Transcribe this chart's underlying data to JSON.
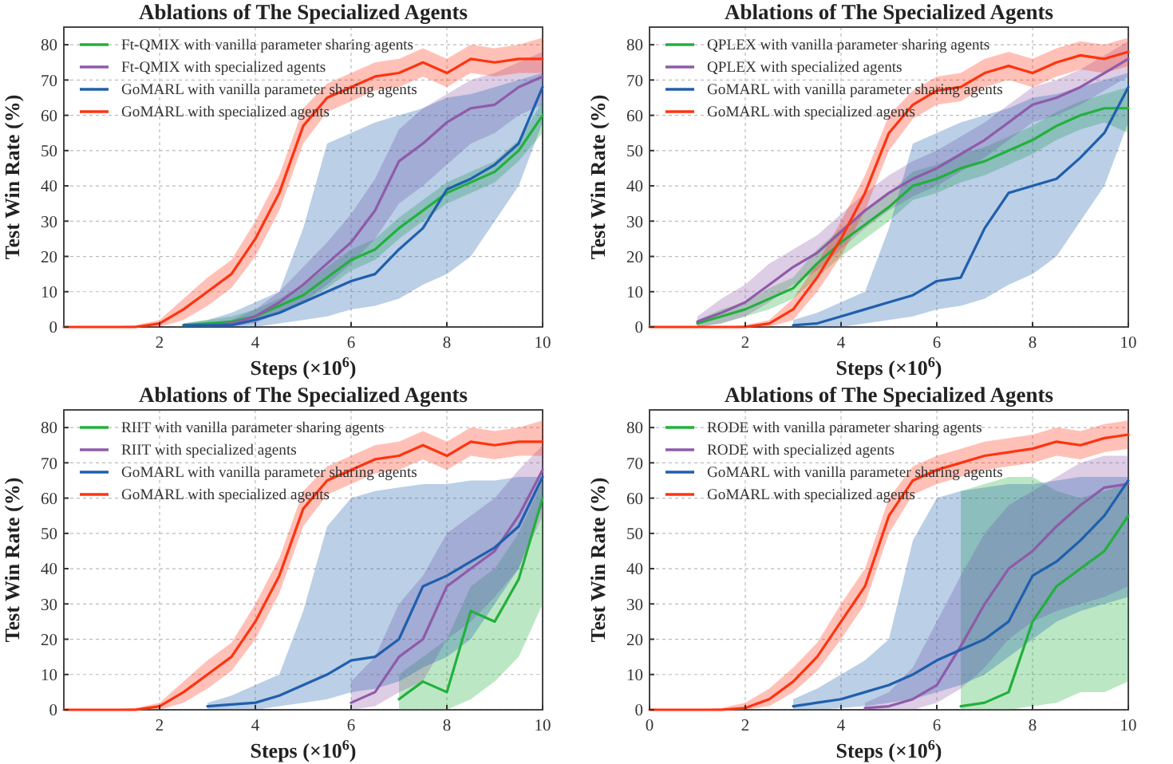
{
  "chart_data": [
    {
      "type": "line",
      "title": "Ablations of The Specialized Agents",
      "xlabel": "Steps (×10$^{6}$)",
      "ylabel": "Test Win Rate (%)",
      "xlim": [
        0,
        10
      ],
      "ylim": [
        0,
        85
      ],
      "xticks": [
        2,
        4,
        6,
        8,
        10
      ],
      "yticks": [
        0,
        10,
        20,
        30,
        40,
        50,
        60,
        70,
        80
      ],
      "grid": true,
      "legend": "top left",
      "line_style": "solid",
      "marker": "none",
      "x": [
        0,
        0.5,
        1,
        1.5,
        2,
        2.5,
        3,
        3.5,
        4,
        4.5,
        5,
        5.5,
        6,
        6.5,
        7,
        7.5,
        8,
        8.5,
        9,
        9.5,
        10
      ],
      "series": [
        {
          "name": "Ft-QMIX with vanilla parameter sharing agents",
          "color": "#22b03c",
          "values": [
            null,
            null,
            null,
            null,
            null,
            0.5,
            1,
            1.5,
            3,
            6,
            9,
            14,
            19,
            22,
            28,
            33,
            38,
            41,
            44,
            50,
            60
          ],
          "lower": [
            null,
            null,
            null,
            null,
            null,
            0,
            0,
            0.5,
            1.5,
            4,
            7,
            11,
            16,
            19,
            25,
            30,
            35,
            38,
            41,
            47,
            55
          ],
          "upper": [
            null,
            null,
            null,
            null,
            null,
            1,
            2,
            3,
            5,
            8,
            12,
            17,
            22,
            25,
            31,
            36,
            41,
            44,
            47,
            53,
            64
          ]
        },
        {
          "name": "Ft-QMIX with specialized agents",
          "color": "#8e5ba8",
          "values": [
            null,
            null,
            null,
            null,
            null,
            null,
            0.5,
            1,
            3,
            7,
            12,
            18,
            24,
            33,
            47,
            52,
            58,
            62,
            63,
            68,
            71
          ],
          "lower": [
            null,
            null,
            null,
            null,
            null,
            null,
            0,
            0,
            1,
            4,
            7,
            12,
            18,
            25,
            35,
            40,
            46,
            52,
            55,
            60,
            63
          ],
          "upper": [
            null,
            null,
            null,
            null,
            null,
            null,
            1,
            2,
            5,
            10,
            17,
            24,
            32,
            42,
            56,
            62,
            66,
            70,
            72,
            75,
            78
          ]
        },
        {
          "name": "GoMARL with vanilla parameter sharing agents",
          "color": "#1f5fad",
          "values": [
            null,
            null,
            null,
            null,
            null,
            0.5,
            0.5,
            0.5,
            2,
            4,
            7,
            10,
            13,
            15,
            22,
            28,
            39,
            42,
            46,
            52,
            68
          ],
          "lower": [
            null,
            null,
            null,
            null,
            null,
            0,
            0,
            0,
            0,
            1,
            2,
            3,
            5,
            6,
            8,
            12,
            15,
            20,
            30,
            40,
            58
          ],
          "upper": [
            null,
            null,
            null,
            null,
            null,
            1,
            2,
            4,
            7,
            10,
            28,
            52,
            55,
            58,
            60,
            62,
            65,
            66,
            68,
            70,
            72
          ]
        },
        {
          "name": "GoMARL with specialized agents",
          "color": "#ff3310",
          "values": [
            0,
            0,
            0,
            0,
            1,
            5,
            10,
            15,
            25,
            38,
            57,
            65,
            68,
            71,
            72,
            75,
            72,
            76,
            75,
            76,
            76
          ],
          "lower": [
            0,
            0,
            0,
            0,
            0,
            2,
            6,
            11,
            20,
            33,
            52,
            61,
            64,
            67,
            68,
            71,
            68,
            72,
            71,
            72,
            72
          ],
          "upper": [
            0,
            0,
            0,
            0.5,
            2,
            8,
            14,
            19,
            30,
            43,
            62,
            69,
            72,
            75,
            76,
            79,
            76,
            80,
            79,
            80,
            82
          ]
        }
      ]
    },
    {
      "type": "line",
      "title": "Ablations of The Specialized Agents",
      "xlabel": "Steps (×10$^{6}$)",
      "ylabel": "Test Win Rate (%)",
      "xlim": [
        0,
        10
      ],
      "ylim": [
        0,
        85
      ],
      "xticks": [
        2,
        4,
        6,
        8,
        10
      ],
      "yticks": [
        0,
        10,
        20,
        30,
        40,
        50,
        60,
        70,
        80
      ],
      "grid": true,
      "legend": "top left",
      "line_style": "solid",
      "marker": "none",
      "x": [
        0,
        0.5,
        1,
        1.5,
        2,
        2.5,
        3,
        3.5,
        4,
        4.5,
        5,
        5.5,
        6,
        6.5,
        7,
        7.5,
        8,
        8.5,
        9,
        9.5,
        10
      ],
      "series": [
        {
          "name": "QPLEX with vanilla parameter sharing agents",
          "color": "#22b03c",
          "values": [
            null,
            null,
            1,
            3,
            5,
            8,
            11,
            18,
            24,
            29,
            34,
            40,
            42,
            45,
            47,
            50,
            53,
            57,
            60,
            62,
            62
          ],
          "lower": [
            null,
            null,
            0,
            1,
            3,
            5,
            8,
            14,
            20,
            25,
            30,
            36,
            38,
            41,
            43,
            46,
            49,
            53,
            56,
            58,
            55
          ],
          "upper": [
            null,
            null,
            2,
            5,
            7,
            11,
            14,
            22,
            28,
            33,
            38,
            44,
            46,
            49,
            51,
            54,
            57,
            61,
            64,
            66,
            68
          ]
        },
        {
          "name": "QPLEX with specialized agents",
          "color": "#8e5ba8",
          "values": [
            null,
            null,
            1.5,
            4,
            7,
            12,
            17,
            21,
            27,
            33,
            38,
            42,
            45,
            49,
            53,
            58,
            63,
            65,
            68,
            72,
            76
          ],
          "lower": [
            null,
            null,
            0,
            1,
            3,
            7,
            12,
            16,
            22,
            28,
            33,
            37,
            40,
            44,
            48,
            53,
            58,
            60,
            63,
            67,
            71
          ],
          "upper": [
            null,
            null,
            3,
            8,
            12,
            18,
            22,
            26,
            32,
            38,
            43,
            47,
            50,
            54,
            58,
            63,
            68,
            70,
            73,
            77,
            81
          ]
        },
        {
          "name": "GoMARL with vanilla parameter sharing agents",
          "color": "#1f5fad",
          "values": [
            null,
            null,
            null,
            null,
            null,
            null,
            0.5,
            1,
            3,
            5,
            7,
            9,
            13,
            14,
            28,
            38,
            40,
            42,
            48,
            55,
            68
          ],
          "lower": [
            null,
            null,
            null,
            null,
            null,
            null,
            0,
            0,
            0,
            1,
            2,
            3,
            5,
            6,
            8,
            12,
            15,
            20,
            30,
            40,
            58
          ],
          "upper": [
            null,
            null,
            null,
            null,
            null,
            null,
            2,
            4,
            7,
            10,
            28,
            52,
            55,
            58,
            60,
            62,
            65,
            66,
            68,
            70,
            72
          ]
        },
        {
          "name": "GoMARL with specialized agents",
          "color": "#ff3310",
          "values": [
            0,
            0,
            0,
            0,
            0,
            1,
            5,
            14,
            25,
            38,
            55,
            63,
            67,
            68,
            72,
            74,
            72,
            75,
            77,
            76,
            78
          ],
          "lower": [
            0,
            0,
            0,
            0,
            0,
            0,
            2,
            10,
            20,
            33,
            50,
            59,
            63,
            64,
            68,
            70,
            68,
            71,
            73,
            72,
            74
          ],
          "upper": [
            0,
            0,
            0,
            0,
            0.5,
            2,
            8,
            18,
            30,
            43,
            60,
            67,
            71,
            72,
            76,
            78,
            76,
            79,
            81,
            80,
            82
          ]
        }
      ]
    },
    {
      "type": "line",
      "title": "Ablations of The Specialized Agents",
      "xlabel": "Steps (×10$^{6}$)",
      "ylabel": "Test Win Rate (%)",
      "xlim": [
        0,
        10
      ],
      "ylim": [
        0,
        85
      ],
      "xticks": [
        2,
        4,
        6,
        8,
        10
      ],
      "yticks": [
        0,
        10,
        20,
        30,
        40,
        50,
        60,
        70,
        80
      ],
      "grid": true,
      "legend": "top left",
      "line_style": "solid",
      "marker": "none",
      "x": [
        0,
        0.5,
        1,
        1.5,
        2,
        2.5,
        3,
        3.5,
        4,
        4.5,
        5,
        5.5,
        6,
        6.5,
        7,
        7.5,
        8,
        8.5,
        9,
        9.5,
        10
      ],
      "series": [
        {
          "name": "RIIT with vanilla parameter sharing agents",
          "color": "#22b03c",
          "values": [
            null,
            null,
            null,
            null,
            null,
            null,
            null,
            null,
            null,
            null,
            null,
            null,
            null,
            null,
            3,
            8,
            5,
            28,
            25,
            37,
            60
          ],
          "lower": [
            null,
            null,
            null,
            null,
            null,
            null,
            null,
            null,
            null,
            null,
            null,
            null,
            null,
            null,
            0,
            0,
            0,
            3,
            8,
            15,
            30
          ],
          "upper": [
            null,
            null,
            null,
            null,
            null,
            null,
            null,
            null,
            null,
            null,
            null,
            null,
            null,
            null,
            10,
            15,
            20,
            35,
            40,
            50,
            65
          ]
        },
        {
          "name": "RIIT with specialized agents",
          "color": "#8e5ba8",
          "values": [
            null,
            null,
            null,
            null,
            null,
            null,
            null,
            null,
            null,
            null,
            null,
            null,
            2,
            5,
            15,
            20,
            35,
            40,
            45,
            55,
            68
          ],
          "lower": [
            null,
            null,
            null,
            null,
            null,
            null,
            null,
            null,
            null,
            null,
            null,
            null,
            0,
            1,
            5,
            8,
            20,
            25,
            32,
            40,
            55
          ],
          "upper": [
            null,
            null,
            null,
            null,
            null,
            null,
            null,
            null,
            null,
            null,
            null,
            null,
            8,
            15,
            30,
            38,
            50,
            55,
            60,
            68,
            75
          ]
        },
        {
          "name": "GoMARL with vanilla parameter sharing agents",
          "color": "#1f5fad",
          "values": [
            null,
            null,
            null,
            null,
            null,
            null,
            1,
            1.5,
            2,
            4,
            7,
            10,
            14,
            15,
            20,
            35,
            38,
            42,
            46,
            52,
            66
          ],
          "lower": [
            null,
            null,
            null,
            null,
            null,
            null,
            0,
            0,
            0,
            1,
            2,
            3,
            5,
            6,
            8,
            12,
            15,
            20,
            30,
            40,
            58
          ],
          "upper": [
            null,
            null,
            null,
            null,
            null,
            null,
            2,
            4,
            7,
            10,
            28,
            52,
            60,
            62,
            63,
            64,
            64,
            65,
            65,
            66,
            66
          ]
        },
        {
          "name": "GoMARL with specialized agents",
          "color": "#ff3310",
          "values": [
            0,
            0,
            0,
            0,
            1,
            5,
            10,
            15,
            25,
            38,
            57,
            65,
            68,
            71,
            72,
            75,
            72,
            76,
            75,
            76,
            76
          ],
          "lower": [
            0,
            0,
            0,
            0,
            0,
            2,
            6,
            11,
            20,
            33,
            52,
            61,
            64,
            67,
            68,
            71,
            68,
            72,
            71,
            72,
            72
          ],
          "upper": [
            0,
            0,
            0,
            0.5,
            2,
            8,
            14,
            19,
            30,
            43,
            62,
            69,
            72,
            75,
            76,
            79,
            76,
            80,
            79,
            80,
            82
          ]
        }
      ]
    },
    {
      "type": "line",
      "title": "Ablations of The Specialized Agents",
      "xlabel": "Steps (×10$^{6}$)",
      "ylabel": "Test Win Rate (%)",
      "xlim": [
        0,
        10
      ],
      "ylim": [
        0,
        85
      ],
      "xticks": [
        0,
        2,
        4,
        6,
        8,
        10
      ],
      "yticks": [
        0,
        10,
        20,
        30,
        40,
        50,
        60,
        70,
        80
      ],
      "grid": true,
      "legend": "top left",
      "line_style": "solid",
      "marker": "none",
      "x": [
        0,
        0.5,
        1,
        1.5,
        2,
        2.5,
        3,
        3.5,
        4,
        4.5,
        5,
        5.5,
        6,
        6.5,
        7,
        7.5,
        8,
        8.5,
        9,
        9.5,
        10
      ],
      "series": [
        {
          "name": "RODE with vanilla parameter sharing agents",
          "color": "#22b03c",
          "values": [
            null,
            null,
            null,
            null,
            null,
            null,
            null,
            null,
            null,
            null,
            null,
            null,
            null,
            1,
            2,
            5,
            25,
            35,
            40,
            45,
            55
          ],
          "lower": [
            null,
            null,
            null,
            null,
            null,
            null,
            null,
            null,
            null,
            null,
            null,
            null,
            null,
            0,
            0,
            0,
            1,
            2,
            5,
            5,
            8
          ],
          "upper": [
            null,
            null,
            null,
            null,
            null,
            null,
            null,
            null,
            null,
            null,
            null,
            null,
            null,
            62,
            64,
            66,
            66,
            62,
            60,
            62,
            64
          ]
        },
        {
          "name": "RODE with specialized agents",
          "color": "#8e5ba8",
          "values": [
            null,
            null,
            null,
            null,
            null,
            null,
            null,
            null,
            null,
            0.5,
            1,
            3,
            7,
            18,
            30,
            40,
            45,
            52,
            58,
            63,
            64
          ],
          "lower": [
            null,
            null,
            null,
            null,
            null,
            null,
            null,
            null,
            null,
            0,
            0,
            0,
            2,
            6,
            12,
            20,
            25,
            28,
            30,
            32,
            35
          ],
          "upper": [
            null,
            null,
            null,
            null,
            null,
            null,
            null,
            null,
            null,
            2,
            5,
            12,
            25,
            38,
            50,
            58,
            62,
            66,
            70,
            72,
            72
          ]
        },
        {
          "name": "GoMARL with vanilla parameter sharing agents",
          "color": "#1f5fad",
          "values": [
            null,
            null,
            null,
            null,
            null,
            null,
            1,
            2,
            3,
            5,
            7,
            10,
            14,
            17,
            20,
            25,
            38,
            42,
            48,
            55,
            65
          ],
          "lower": [
            null,
            null,
            null,
            null,
            null,
            null,
            0,
            0,
            0.5,
            1,
            2,
            3,
            5,
            7,
            10,
            15,
            20,
            25,
            28,
            30,
            32
          ],
          "upper": [
            null,
            null,
            null,
            null,
            null,
            null,
            3,
            6,
            10,
            14,
            20,
            48,
            60,
            62,
            63,
            64,
            64,
            65,
            66,
            66,
            66
          ]
        },
        {
          "name": "GoMARL with specialized agents",
          "color": "#ff3310",
          "values": [
            0,
            0,
            0,
            0,
            0.5,
            3,
            8,
            15,
            25,
            35,
            55,
            65,
            68,
            70,
            72,
            73,
            74,
            76,
            75,
            77,
            78
          ],
          "lower": [
            0,
            0,
            0,
            0,
            0,
            1,
            5,
            11,
            20,
            30,
            50,
            61,
            64,
            66,
            68,
            69,
            70,
            72,
            71,
            73,
            74
          ],
          "upper": [
            0,
            0,
            0,
            0.5,
            2,
            6,
            12,
            19,
            30,
            40,
            60,
            69,
            72,
            74,
            76,
            77,
            78,
            80,
            79,
            81,
            82
          ]
        }
      ]
    }
  ]
}
